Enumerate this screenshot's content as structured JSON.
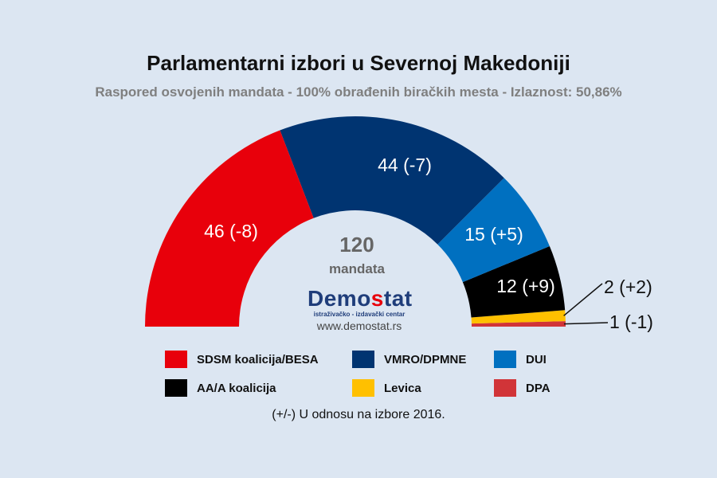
{
  "title": "Parlamentarni izbori u Severnoj Makedoniji",
  "subtitle": "Raspored osvojenih mandata - 100% obrađenih biračkih mesta - Izlaznost: 50,86%",
  "center": {
    "total": "120",
    "unit": "mandata"
  },
  "logo": {
    "name_a": "Demo",
    "name_s": "s",
    "name_b": "tat",
    "tagline": "istraživačko - izdavački centar",
    "url": "www.demostat.rs"
  },
  "note": "(+/-) U odnosu na izbore 2016.",
  "chart_data": {
    "type": "pie",
    "subtype": "half-donut parliament",
    "total": 120,
    "series": [
      {
        "name": "SDSM koalicija/BESA",
        "value": 46,
        "change": "-8",
        "label": "46 (-8)",
        "color": "#e8000b"
      },
      {
        "name": "VMRO/DPMNE",
        "value": 44,
        "change": "-7",
        "label": "44 (-7)",
        "color": "#003471"
      },
      {
        "name": "DUI",
        "value": 15,
        "change": "+5",
        "label": "15 (+5)",
        "color": "#0070c0"
      },
      {
        "name": "AA/A koalicija",
        "value": 12,
        "change": "+9",
        "label": "12 (+9)",
        "color": "#000000"
      },
      {
        "name": "Levica",
        "value": 2,
        "change": "+2",
        "label": "2 (+2)",
        "color": "#ffc000"
      },
      {
        "name": "DPA",
        "value": 1,
        "change": "-1",
        "label": "1 (-1)",
        "color": "#d13438"
      }
    ],
    "legend_order": [
      0,
      1,
      2,
      3,
      4,
      5
    ]
  }
}
